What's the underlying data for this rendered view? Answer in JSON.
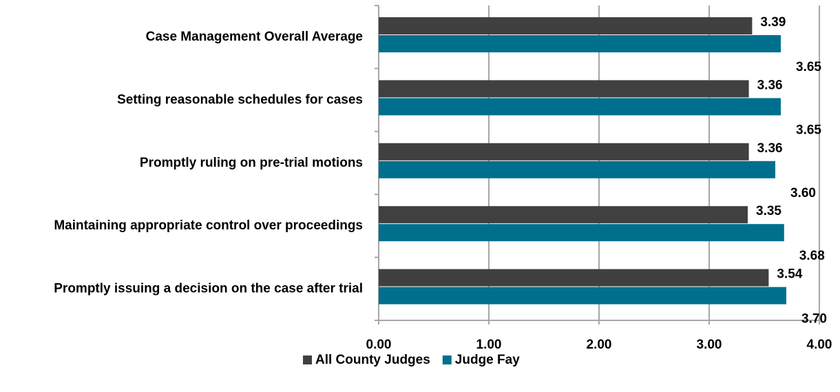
{
  "chart_data": {
    "type": "hbar",
    "categories": [
      "Case Management Overall Average",
      "Setting reasonable schedules for cases",
      "Promptly ruling on pre-trial motions",
      "Maintaining appropriate control over proceedings",
      "Promptly issuing a decision on the case after trial"
    ],
    "series": [
      {
        "name": "All County Judges",
        "color": "#404040",
        "values": [
          3.39,
          3.36,
          3.36,
          3.35,
          3.54
        ],
        "value_labels": [
          "3.39",
          "3.36",
          "3.36",
          "3.35",
          "3.54"
        ]
      },
      {
        "name": "Judge Fay",
        "color": "#006f8e",
        "values": [
          3.65,
          3.65,
          3.6,
          3.68,
          3.7
        ],
        "value_labels": [
          "3.65",
          "3.65",
          "3.60",
          "3.68",
          "3.70"
        ]
      }
    ],
    "xlim": [
      0,
      4
    ],
    "xticks": [
      {
        "value": 0,
        "label": "0.00"
      },
      {
        "value": 1,
        "label": "1.00"
      },
      {
        "value": 2,
        "label": "2.00"
      },
      {
        "value": 3,
        "label": "3.00"
      },
      {
        "value": 4,
        "label": "4.00"
      }
    ],
    "grid": true,
    "legend": "bottom"
  }
}
